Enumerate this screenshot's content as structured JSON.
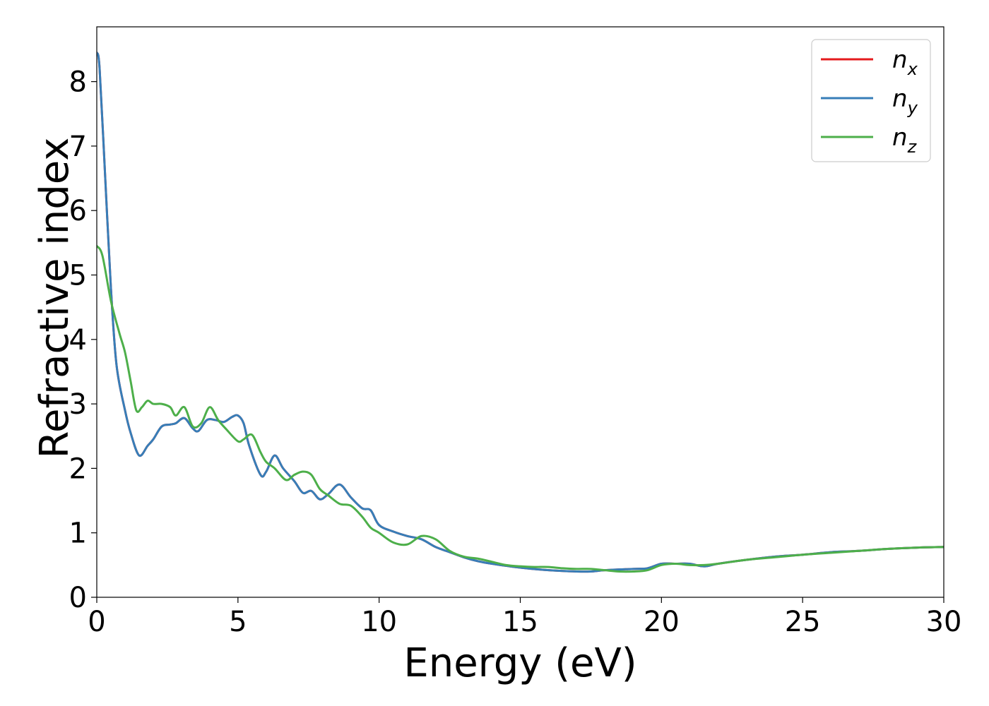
{
  "chart_data": {
    "type": "line",
    "xlabel": "Energy (eV)",
    "ylabel": "Refractive index",
    "xlim": [
      0,
      30
    ],
    "ylim": [
      0,
      8.85
    ],
    "xticks": [
      0,
      5,
      10,
      15,
      20,
      25,
      30
    ],
    "yticks": [
      0,
      1,
      2,
      3,
      4,
      5,
      6,
      7,
      8
    ],
    "grid": false,
    "legend_position": "top-right",
    "series": [
      {
        "name": "n",
        "subscript": "x",
        "color": "#e41a1c",
        "x": [
          0,
          0.1,
          0.3,
          0.5,
          0.7,
          1.0,
          1.2,
          1.5,
          1.8,
          2.0,
          2.3,
          2.6,
          2.8,
          3.1,
          3.4,
          3.6,
          3.9,
          4.2,
          4.5,
          4.8,
          5.0,
          5.2,
          5.4,
          5.8,
          6.0,
          6.3,
          6.6,
          7.0,
          7.3,
          7.6,
          7.9,
          8.2,
          8.6,
          9.0,
          9.4,
          9.7,
          10.0,
          10.5,
          11.0,
          11.5,
          12.0,
          12.5,
          13.0,
          13.5,
          14.0,
          15.0,
          16.0,
          17.0,
          17.5,
          18.0,
          19.0,
          19.5,
          20.0,
          20.5,
          21.0,
          21.5,
          22.0,
          23.0,
          24.0,
          25.0,
          26.0,
          27.0,
          28.0,
          29.0,
          30.0
        ],
        "y": [
          8.45,
          8.2,
          6.5,
          4.8,
          3.6,
          2.9,
          2.55,
          2.2,
          2.35,
          2.45,
          2.65,
          2.68,
          2.7,
          2.78,
          2.62,
          2.58,
          2.75,
          2.75,
          2.72,
          2.8,
          2.82,
          2.7,
          2.35,
          1.9,
          1.95,
          2.2,
          2.0,
          1.8,
          1.62,
          1.65,
          1.52,
          1.6,
          1.75,
          1.55,
          1.38,
          1.35,
          1.12,
          1.02,
          0.95,
          0.9,
          0.78,
          0.7,
          0.62,
          0.56,
          0.52,
          0.46,
          0.42,
          0.4,
          0.4,
          0.42,
          0.44,
          0.45,
          0.52,
          0.52,
          0.52,
          0.48,
          0.52,
          0.58,
          0.63,
          0.66,
          0.7,
          0.72,
          0.75,
          0.77,
          0.78
        ]
      },
      {
        "name": "n",
        "subscript": "y",
        "color": "#377eb8",
        "x": [
          0,
          0.1,
          0.3,
          0.5,
          0.7,
          1.0,
          1.2,
          1.5,
          1.8,
          2.0,
          2.3,
          2.6,
          2.8,
          3.1,
          3.4,
          3.6,
          3.9,
          4.2,
          4.5,
          4.8,
          5.0,
          5.2,
          5.4,
          5.8,
          6.0,
          6.3,
          6.6,
          7.0,
          7.3,
          7.6,
          7.9,
          8.2,
          8.6,
          9.0,
          9.4,
          9.7,
          10.0,
          10.5,
          11.0,
          11.5,
          12.0,
          12.5,
          13.0,
          13.5,
          14.0,
          15.0,
          16.0,
          17.0,
          17.5,
          18.0,
          19.0,
          19.5,
          20.0,
          20.5,
          21.0,
          21.5,
          22.0,
          23.0,
          24.0,
          25.0,
          26.0,
          27.0,
          28.0,
          29.0,
          30.0
        ],
        "y": [
          8.45,
          8.2,
          6.5,
          4.8,
          3.6,
          2.9,
          2.55,
          2.2,
          2.35,
          2.45,
          2.65,
          2.68,
          2.7,
          2.78,
          2.62,
          2.58,
          2.75,
          2.75,
          2.72,
          2.8,
          2.82,
          2.7,
          2.35,
          1.9,
          1.95,
          2.2,
          2.0,
          1.8,
          1.62,
          1.65,
          1.52,
          1.6,
          1.75,
          1.55,
          1.38,
          1.35,
          1.12,
          1.02,
          0.95,
          0.9,
          0.78,
          0.7,
          0.62,
          0.56,
          0.52,
          0.46,
          0.42,
          0.4,
          0.4,
          0.42,
          0.44,
          0.45,
          0.52,
          0.52,
          0.52,
          0.48,
          0.52,
          0.58,
          0.63,
          0.66,
          0.7,
          0.72,
          0.75,
          0.77,
          0.78
        ]
      },
      {
        "name": "n",
        "subscript": "z",
        "color": "#4daf4a",
        "x": [
          0,
          0.2,
          0.5,
          0.8,
          1.0,
          1.2,
          1.4,
          1.6,
          1.8,
          2.0,
          2.3,
          2.6,
          2.8,
          3.1,
          3.4,
          3.7,
          4.0,
          4.3,
          4.6,
          5.0,
          5.2,
          5.5,
          5.8,
          6.0,
          6.3,
          6.7,
          7.0,
          7.3,
          7.6,
          7.9,
          8.2,
          8.6,
          9.0,
          9.4,
          9.7,
          10.0,
          10.5,
          11.0,
          11.5,
          12.0,
          12.5,
          13.0,
          13.5,
          14.0,
          14.5,
          15.0,
          15.5,
          16.0,
          16.5,
          17.0,
          17.5,
          18.0,
          18.5,
          19.0,
          19.5,
          20.0,
          20.5,
          21.0,
          21.5,
          22.0,
          23.0,
          24.0,
          25.0,
          26.0,
          27.0,
          28.0,
          29.0,
          30.0
        ],
        "y": [
          5.45,
          5.3,
          4.6,
          4.1,
          3.8,
          3.35,
          2.9,
          2.95,
          3.05,
          3.0,
          3.0,
          2.95,
          2.82,
          2.95,
          2.65,
          2.7,
          2.95,
          2.75,
          2.6,
          2.42,
          2.45,
          2.52,
          2.25,
          2.1,
          2.0,
          1.82,
          1.9,
          1.95,
          1.9,
          1.68,
          1.58,
          1.45,
          1.42,
          1.25,
          1.08,
          1.0,
          0.85,
          0.82,
          0.95,
          0.9,
          0.72,
          0.63,
          0.6,
          0.55,
          0.5,
          0.48,
          0.47,
          0.47,
          0.45,
          0.44,
          0.44,
          0.42,
          0.4,
          0.4,
          0.42,
          0.5,
          0.52,
          0.5,
          0.5,
          0.52,
          0.58,
          0.62,
          0.66,
          0.69,
          0.72,
          0.75,
          0.77,
          0.78
        ]
      }
    ]
  }
}
